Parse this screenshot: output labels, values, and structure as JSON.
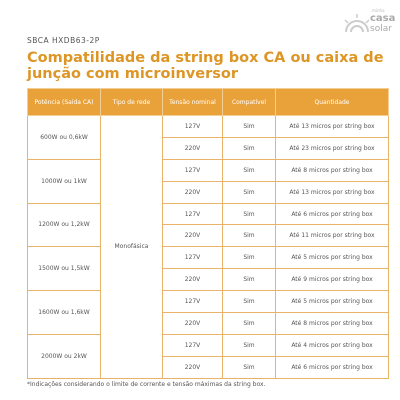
{
  "header": {
    "code": "SBCA HXDB63-2P",
    "logo": {
      "small": "minha",
      "main": "casa",
      "sub": "solar"
    }
  },
  "title": "Compatilidade da string box CA ou caixa de junção com microinversor",
  "table": {
    "columns": [
      "Potência (Saída CA)",
      "Tipo de rede",
      "Tensão nominal",
      "Compatível",
      "Quantidade"
    ],
    "network_type": "Monofásica",
    "groups": [
      {
        "power": "600W ou 0,6kW",
        "rows": [
          [
            "127V",
            "Sim",
            "Até 13 micros por string box"
          ],
          [
            "220V",
            "Sim",
            "Até 23 micros por string box"
          ]
        ]
      },
      {
        "power": "1000W ou 1kW",
        "rows": [
          [
            "127V",
            "Sim",
            "Até 8 micros por string box"
          ],
          [
            "220V",
            "Sim",
            "Até 13 micros por string box"
          ]
        ]
      },
      {
        "power": "1200W ou 1,2kW",
        "rows": [
          [
            "127V",
            "Sim",
            "Até 6 micros por string box"
          ],
          [
            "220V",
            "Sim",
            "Até 11 micros por string box"
          ]
        ]
      },
      {
        "power": "1500W ou 1,5kW",
        "rows": [
          [
            "127V",
            "Sim",
            "Até 5 micros por string box"
          ],
          [
            "220V",
            "Sim",
            "Até 9 micros por string box"
          ]
        ]
      },
      {
        "power": "1600W ou 1,6kW",
        "rows": [
          [
            "127V",
            "Sim",
            "Até 5 micros por string box"
          ],
          [
            "220V",
            "Sim",
            "Até 8 micros por string box"
          ]
        ]
      },
      {
        "power": "2000W ou 2kW",
        "rows": [
          [
            "127V",
            "Sim",
            "Até 4 micros por string box"
          ],
          [
            "220V",
            "Sim",
            "Até 6 micros por string box"
          ]
        ]
      }
    ]
  },
  "footnote": "*Indicações considerando o limite de corrente e tensão máximas da string box."
}
